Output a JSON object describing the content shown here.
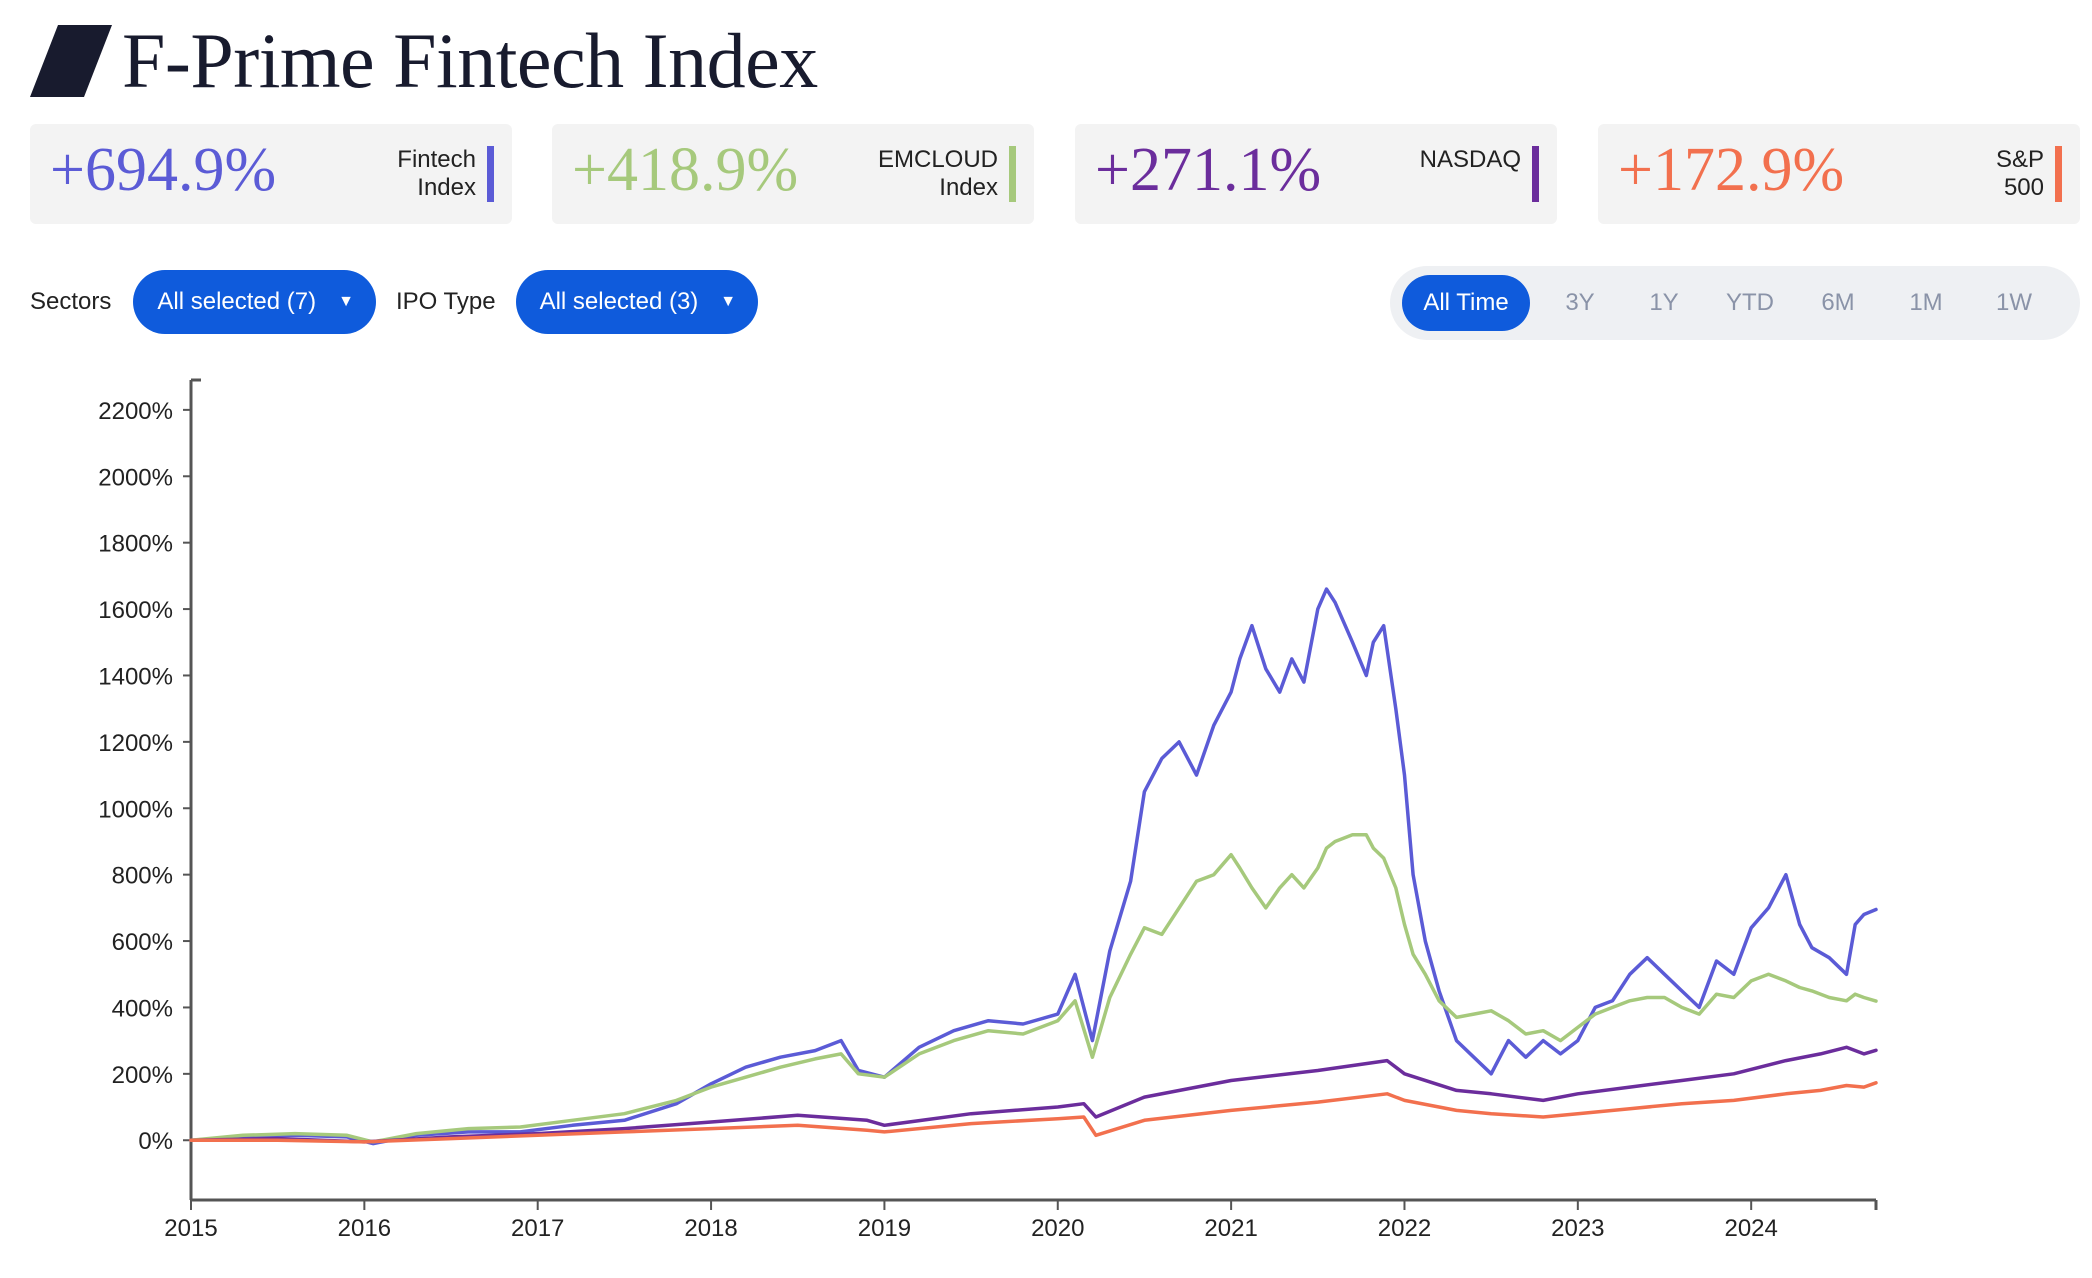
{
  "title": "F-Prime Fintech Index",
  "cards": [
    {
      "value": "+694.9%",
      "label_lines": [
        "Fintech",
        "Index"
      ],
      "color": "#5b5bd6"
    },
    {
      "value": "+418.9%",
      "label_lines": [
        "EMCLOUD",
        "Index"
      ],
      "color": "#a6c97c"
    },
    {
      "value": "+271.1%",
      "label_lines": [
        "NASDAQ",
        ""
      ],
      "color": "#6b2d9c"
    },
    {
      "value": "+172.9%",
      "label_lines": [
        "S&P",
        "500"
      ],
      "color": "#f2704e"
    }
  ],
  "filters": {
    "sectors_label": "Sectors",
    "sectors_value": "All selected (7)",
    "ipo_label": "IPO Type",
    "ipo_value": "All selected (3)"
  },
  "ranges": [
    "All Time",
    "3Y",
    "1Y",
    "YTD",
    "6M",
    "1M",
    "1W"
  ],
  "active_range": "All Time",
  "colors": {
    "accent": "#0f5bdc",
    "fintech": "#5b5bd6",
    "emcloud": "#a6c97c",
    "nasdaq": "#6b2d9c",
    "sp500": "#f2704e"
  },
  "chart_data": {
    "type": "line",
    "x_ticks": [
      "2015",
      "2016",
      "2017",
      "2018",
      "2019",
      "2020",
      "2021",
      "2022",
      "2023",
      "2024"
    ],
    "y_ticks": [
      "0%",
      "200%",
      "400%",
      "600%",
      "800%",
      "1000%",
      "1200%",
      "1400%",
      "1600%",
      "1800%",
      "2000%",
      "2200%"
    ],
    "ylim": [
      -180,
      2290
    ],
    "xlim": [
      2015.0,
      2024.72
    ],
    "series": [
      {
        "name": "Fintech Index",
        "color": "#5b5bd6",
        "x": [
          2015.0,
          2015.3,
          2015.6,
          2015.9,
          2016.05,
          2016.3,
          2016.6,
          2016.9,
          2017.2,
          2017.5,
          2017.8,
          2018.0,
          2018.2,
          2018.4,
          2018.6,
          2018.75,
          2018.85,
          2019.0,
          2019.2,
          2019.4,
          2019.6,
          2019.8,
          2020.0,
          2020.1,
          2020.2,
          2020.3,
          2020.42,
          2020.5,
          2020.6,
          2020.7,
          2020.8,
          2020.9,
          2021.0,
          2021.05,
          2021.12,
          2021.2,
          2021.28,
          2021.35,
          2021.42,
          2021.5,
          2021.55,
          2021.6,
          2021.7,
          2021.78,
          2021.82,
          2021.88,
          2021.95,
          2022.0,
          2022.05,
          2022.12,
          2022.2,
          2022.3,
          2022.4,
          2022.5,
          2022.6,
          2022.7,
          2022.8,
          2022.9,
          2023.0,
          2023.1,
          2023.2,
          2023.3,
          2023.4,
          2023.5,
          2023.6,
          2023.7,
          2023.8,
          2023.9,
          2024.0,
          2024.1,
          2024.2,
          2024.28,
          2024.35,
          2024.45,
          2024.55,
          2024.6,
          2024.65,
          2024.72
        ],
        "y": [
          0,
          10,
          15,
          10,
          -10,
          15,
          25,
          25,
          45,
          60,
          110,
          170,
          220,
          250,
          270,
          300,
          210,
          190,
          280,
          330,
          360,
          350,
          380,
          500,
          300,
          570,
          780,
          1050,
          1150,
          1200,
          1100,
          1250,
          1350,
          1450,
          1550,
          1420,
          1350,
          1450,
          1380,
          1600,
          1660,
          1620,
          1500,
          1400,
          1500,
          1550,
          1300,
          1100,
          800,
          600,
          450,
          300,
          250,
          200,
          300,
          250,
          300,
          260,
          300,
          400,
          420,
          500,
          550,
          500,
          450,
          400,
          540,
          500,
          640,
          700,
          800,
          650,
          580,
          550,
          500,
          650,
          680,
          695
        ]
      },
      {
        "name": "EMCLOUD Index",
        "color": "#a6c97c",
        "x": [
          2015.0,
          2015.3,
          2015.6,
          2015.9,
          2016.05,
          2016.3,
          2016.6,
          2016.9,
          2017.2,
          2017.5,
          2017.8,
          2018.0,
          2018.2,
          2018.4,
          2018.6,
          2018.75,
          2018.85,
          2019.0,
          2019.2,
          2019.4,
          2019.6,
          2019.8,
          2020.0,
          2020.1,
          2020.2,
          2020.3,
          2020.42,
          2020.5,
          2020.6,
          2020.7,
          2020.8,
          2020.9,
          2021.0,
          2021.05,
          2021.12,
          2021.2,
          2021.28,
          2021.35,
          2021.42,
          2021.5,
          2021.55,
          2021.6,
          2021.7,
          2021.78,
          2021.82,
          2021.88,
          2021.95,
          2022.0,
          2022.05,
          2022.12,
          2022.2,
          2022.3,
          2022.4,
          2022.5,
          2022.6,
          2022.7,
          2022.8,
          2022.9,
          2023.0,
          2023.1,
          2023.2,
          2023.3,
          2023.4,
          2023.5,
          2023.6,
          2023.7,
          2023.8,
          2023.9,
          2024.0,
          2024.1,
          2024.2,
          2024.28,
          2024.35,
          2024.45,
          2024.55,
          2024.6,
          2024.65,
          2024.72
        ],
        "y": [
          0,
          15,
          20,
          15,
          -5,
          20,
          35,
          40,
          60,
          80,
          120,
          160,
          190,
          220,
          245,
          260,
          200,
          190,
          260,
          300,
          330,
          320,
          360,
          420,
          250,
          430,
          560,
          640,
          620,
          700,
          780,
          800,
          860,
          820,
          760,
          700,
          760,
          800,
          760,
          820,
          880,
          900,
          920,
          920,
          880,
          850,
          760,
          650,
          560,
          500,
          420,
          370,
          380,
          390,
          360,
          320,
          330,
          300,
          340,
          380,
          400,
          420,
          430,
          430,
          400,
          380,
          440,
          430,
          480,
          500,
          480,
          460,
          450,
          430,
          420,
          440,
          430,
          419
        ]
      },
      {
        "name": "NASDAQ",
        "color": "#6b2d9c",
        "x": [
          2015.0,
          2015.5,
          2016.0,
          2016.5,
          2017.0,
          2017.5,
          2018.0,
          2018.5,
          2018.9,
          2019.0,
          2019.5,
          2020.0,
          2020.15,
          2020.22,
          2020.5,
          2021.0,
          2021.5,
          2021.9,
          2022.0,
          2022.3,
          2022.5,
          2022.8,
          2023.0,
          2023.3,
          2023.6,
          2023.9,
          2024.2,
          2024.4,
          2024.55,
          2024.65,
          2024.72
        ],
        "y": [
          0,
          5,
          -5,
          10,
          20,
          35,
          55,
          75,
          60,
          45,
          80,
          100,
          110,
          70,
          130,
          180,
          210,
          240,
          200,
          150,
          140,
          120,
          140,
          160,
          180,
          200,
          240,
          260,
          280,
          260,
          271
        ]
      },
      {
        "name": "S&P 500",
        "color": "#f2704e",
        "x": [
          2015.0,
          2015.5,
          2016.0,
          2016.5,
          2017.0,
          2017.5,
          2018.0,
          2018.5,
          2018.9,
          2019.0,
          2019.5,
          2020.0,
          2020.15,
          2020.22,
          2020.5,
          2021.0,
          2021.5,
          2021.9,
          2022.0,
          2022.3,
          2022.5,
          2022.8,
          2023.0,
          2023.3,
          2023.6,
          2023.9,
          2024.2,
          2024.4,
          2024.55,
          2024.65,
          2024.72
        ],
        "y": [
          0,
          0,
          -5,
          5,
          15,
          25,
          35,
          45,
          30,
          25,
          50,
          65,
          70,
          15,
          60,
          90,
          115,
          140,
          120,
          90,
          80,
          70,
          80,
          95,
          110,
          120,
          140,
          150,
          165,
          160,
          173
        ]
      }
    ]
  }
}
